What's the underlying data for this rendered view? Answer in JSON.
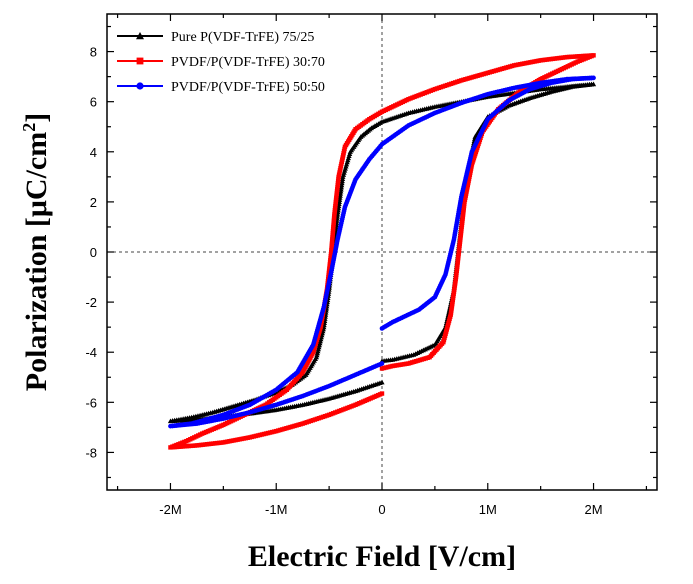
{
  "chart_data": {
    "type": "line",
    "title": "",
    "xlabel": "Electric Field [V/cm]",
    "ylabel_main": "Polarization [μC/cm",
    "ylabel_sup": "2",
    "ylabel_close": "]",
    "xlim": [
      -2.6,
      2.6
    ],
    "ylim": [
      -9.5,
      9.5
    ],
    "x_ticks": [
      {
        "v": -2,
        "label": "-2M"
      },
      {
        "v": -1,
        "label": "-1M"
      },
      {
        "v": 0,
        "label": "0"
      },
      {
        "v": 1,
        "label": "1M"
      },
      {
        "v": 2,
        "label": "2M"
      }
    ],
    "y_ticks": [
      -8,
      -6,
      -4,
      -2,
      0,
      2,
      4,
      6,
      8
    ],
    "x_unit": 1000000,
    "reference_lines": {
      "x": 0,
      "y": 0
    },
    "legend_position": "top-left",
    "series": [
      {
        "name": "Pure P(VDF-TrFE) 75/25",
        "color": "#000000",
        "marker": "triangle",
        "points": [
          [
            0,
            -5.2
          ],
          [
            -0.25,
            -5.55
          ],
          [
            -0.5,
            -5.85
          ],
          [
            -0.75,
            -6.1
          ],
          [
            -1.0,
            -6.3
          ],
          [
            -1.25,
            -6.45
          ],
          [
            -1.5,
            -6.58
          ],
          [
            -1.75,
            -6.68
          ],
          [
            -2.0,
            -6.75
          ],
          [
            -1.8,
            -6.6
          ],
          [
            -1.6,
            -6.4
          ],
          [
            -1.4,
            -6.15
          ],
          [
            -1.2,
            -5.9
          ],
          [
            -1.0,
            -5.6
          ],
          [
            -0.85,
            -5.3
          ],
          [
            -0.72,
            -4.9
          ],
          [
            -0.62,
            -4.2
          ],
          [
            -0.55,
            -3.0
          ],
          [
            -0.5,
            -1.5
          ],
          [
            -0.46,
            0.0
          ],
          [
            -0.42,
            1.5
          ],
          [
            -0.37,
            3.0
          ],
          [
            -0.3,
            4.0
          ],
          [
            -0.2,
            4.6
          ],
          [
            -0.1,
            4.95
          ],
          [
            0,
            5.2
          ],
          [
            0.25,
            5.55
          ],
          [
            0.5,
            5.8
          ],
          [
            0.75,
            6.0
          ],
          [
            1.0,
            6.2
          ],
          [
            1.25,
            6.35
          ],
          [
            1.5,
            6.5
          ],
          [
            1.75,
            6.6
          ],
          [
            2.0,
            6.7
          ],
          [
            1.8,
            6.6
          ],
          [
            1.6,
            6.4
          ],
          [
            1.4,
            6.15
          ],
          [
            1.2,
            5.85
          ],
          [
            1.0,
            5.4
          ],
          [
            0.88,
            4.6
          ],
          [
            0.8,
            3.0
          ],
          [
            0.76,
            1.5
          ],
          [
            0.72,
            0.0
          ],
          [
            0.68,
            -1.5
          ],
          [
            0.6,
            -3.0
          ],
          [
            0.5,
            -3.7
          ],
          [
            0.3,
            -4.1
          ],
          [
            0.1,
            -4.3
          ],
          [
            0,
            -4.35
          ]
        ]
      },
      {
        "name": "PVDF/P(VDF-TrFE) 30:70",
        "color": "#ff0000",
        "marker": "square",
        "points": [
          [
            0,
            -5.65
          ],
          [
            -0.25,
            -6.1
          ],
          [
            -0.5,
            -6.5
          ],
          [
            -0.75,
            -6.85
          ],
          [
            -1.0,
            -7.15
          ],
          [
            -1.25,
            -7.4
          ],
          [
            -1.5,
            -7.6
          ],
          [
            -1.75,
            -7.72
          ],
          [
            -2.0,
            -7.8
          ],
          [
            -1.85,
            -7.55
          ],
          [
            -1.7,
            -7.25
          ],
          [
            -1.5,
            -6.9
          ],
          [
            -1.3,
            -6.5
          ],
          [
            -1.1,
            -6.1
          ],
          [
            -0.9,
            -5.5
          ],
          [
            -0.75,
            -4.8
          ],
          [
            -0.65,
            -4.0
          ],
          [
            -0.58,
            -3.0
          ],
          [
            -0.52,
            -1.5
          ],
          [
            -0.48,
            0.0
          ],
          [
            -0.45,
            1.5
          ],
          [
            -0.41,
            3.0
          ],
          [
            -0.35,
            4.2
          ],
          [
            -0.25,
            4.9
          ],
          [
            -0.12,
            5.3
          ],
          [
            0,
            5.6
          ],
          [
            0.25,
            6.1
          ],
          [
            0.5,
            6.5
          ],
          [
            0.75,
            6.85
          ],
          [
            1.0,
            7.15
          ],
          [
            1.25,
            7.45
          ],
          [
            1.5,
            7.65
          ],
          [
            1.75,
            7.78
          ],
          [
            2.0,
            7.85
          ],
          [
            1.85,
            7.6
          ],
          [
            1.7,
            7.3
          ],
          [
            1.5,
            6.9
          ],
          [
            1.3,
            6.4
          ],
          [
            1.1,
            5.7
          ],
          [
            0.95,
            4.8
          ],
          [
            0.85,
            3.5
          ],
          [
            0.78,
            2.0
          ],
          [
            0.74,
            0.5
          ],
          [
            0.7,
            -1.0
          ],
          [
            0.65,
            -2.5
          ],
          [
            0.58,
            -3.6
          ],
          [
            0.45,
            -4.2
          ],
          [
            0.25,
            -4.45
          ],
          [
            0.1,
            -4.55
          ],
          [
            0,
            -4.65
          ]
        ]
      },
      {
        "name": "PVDF/P(VDF-TrFE) 50:50",
        "color": "#0000ff",
        "marker": "circle",
        "points": [
          [
            0,
            -4.45
          ],
          [
            -0.25,
            -4.9
          ],
          [
            -0.5,
            -5.35
          ],
          [
            -0.75,
            -5.75
          ],
          [
            -1.0,
            -6.1
          ],
          [
            -1.25,
            -6.4
          ],
          [
            -1.5,
            -6.65
          ],
          [
            -1.75,
            -6.85
          ],
          [
            -2.0,
            -6.95
          ],
          [
            -1.8,
            -6.85
          ],
          [
            -1.5,
            -6.5
          ],
          [
            -1.25,
            -6.1
          ],
          [
            -1.0,
            -5.5
          ],
          [
            -0.8,
            -4.8
          ],
          [
            -0.65,
            -3.7
          ],
          [
            -0.55,
            -2.2
          ],
          [
            -0.48,
            -0.8
          ],
          [
            -0.42,
            0.5
          ],
          [
            -0.35,
            1.8
          ],
          [
            -0.25,
            2.9
          ],
          [
            -0.12,
            3.7
          ],
          [
            0,
            4.3
          ],
          [
            0.25,
            5.05
          ],
          [
            0.5,
            5.55
          ],
          [
            0.75,
            5.95
          ],
          [
            1.0,
            6.3
          ],
          [
            1.25,
            6.55
          ],
          [
            1.5,
            6.75
          ],
          [
            1.75,
            6.9
          ],
          [
            2.0,
            6.95
          ],
          [
            1.8,
            6.9
          ],
          [
            1.6,
            6.75
          ],
          [
            1.4,
            6.5
          ],
          [
            1.2,
            6.05
          ],
          [
            1.0,
            5.3
          ],
          [
            0.85,
            4.0
          ],
          [
            0.75,
            2.2
          ],
          [
            0.68,
            0.5
          ],
          [
            0.6,
            -0.9
          ],
          [
            0.5,
            -1.8
          ],
          [
            0.35,
            -2.3
          ],
          [
            0.2,
            -2.6
          ],
          [
            0.1,
            -2.8
          ],
          [
            0,
            -3.05
          ]
        ]
      }
    ]
  }
}
